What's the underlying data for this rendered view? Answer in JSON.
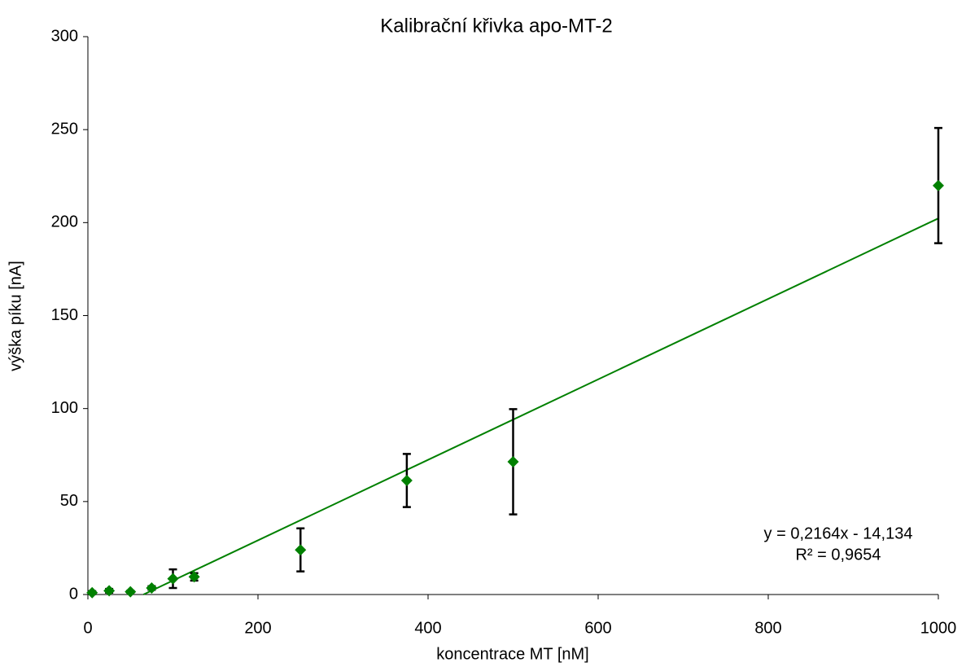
{
  "chart_data": {
    "type": "scatter",
    "title": "Kalibrační křivka apo-MT-2",
    "x_label": "koncentrace MT [nM]",
    "y_label": "výška píku [nA]",
    "series": [
      {
        "color": "#008000",
        "x": [
          5,
          25,
          50,
          75,
          100,
          125,
          250,
          375,
          500,
          1000
        ],
        "values": [
          1,
          2,
          1.5,
          3.5,
          8.5,
          9.5,
          24,
          61.3,
          71.4,
          219.9
        ],
        "errors": [
          0.8,
          1,
          0.5,
          1,
          5,
          2,
          11.6,
          14.3,
          28.3,
          31
        ]
      }
    ],
    "error_color": "#000000",
    "trendline": {
      "slope": 0.2164,
      "intercept": -14.134,
      "color": "#008000",
      "equation": "y = 0,2164x - 14,134",
      "r2": "R² = 0,9654"
    },
    "xlim": [
      0,
      1000
    ],
    "xticks": [
      0,
      200,
      400,
      600,
      800,
      1000
    ],
    "ylim": [
      0,
      300
    ],
    "yticks": [
      0,
      50,
      100,
      150,
      200,
      250,
      300
    ],
    "grid": false
  }
}
